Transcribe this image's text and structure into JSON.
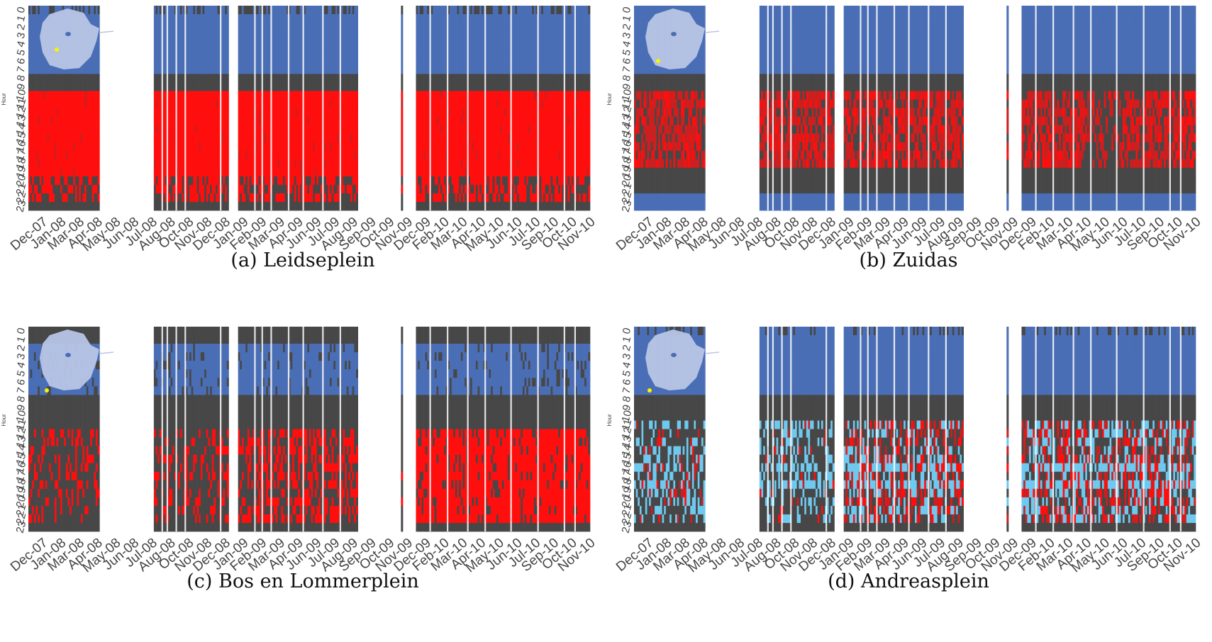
{
  "colors": {
    "grey": "#474747",
    "blue": "#4a6eb5",
    "red": "#ff0e0e",
    "darkred": "#cc1f1f",
    "cyan": "#6fc9ef",
    "map_fill": "#b8c5e6",
    "gap": "#ffffff"
  },
  "shared": {
    "ylabel": "Hour",
    "hour_ticks": [
      "0",
      "1",
      "2",
      "3",
      "4",
      "5",
      "6",
      "7",
      "8",
      "9",
      "10",
      "11",
      "12",
      "13",
      "14",
      "15",
      "16",
      "17",
      "18",
      "19",
      "20",
      "21",
      "22",
      "23"
    ],
    "month_ticks": [
      "Dec-07",
      "Jan-08",
      "Mar-08",
      "Apr-08",
      "May-08",
      "Jun-08",
      "Jul-08",
      "Aug-08",
      "Oct-08",
      "Nov-08",
      "Dec-08",
      "Jan-09",
      "Feb-09",
      "Mar-09",
      "Apr-09",
      "Jun-09",
      "Jul-09",
      "Aug-09",
      "Sep-09",
      "Oct-09",
      "Nov-09",
      "Dec-09",
      "Feb-10",
      "Mar-10",
      "Apr-10",
      "May-10",
      "Jun-10",
      "Jul-10",
      "Sep-10",
      "Oct-10",
      "Nov-10"
    ]
  },
  "panels": [
    {
      "caption": "(a) Leidseplein"
    },
    {
      "caption": "(b) Zuidas"
    },
    {
      "caption": "(c) Bos en Lommerplein"
    },
    {
      "caption": "(d) Andreasplein"
    }
  ],
  "chart_data": [
    {
      "type": "heatmap",
      "title": "(a) Leidseplein",
      "xlabel": "",
      "ylabel": "Hour",
      "x": "date (Dec-07 to Nov-10)",
      "y_range": [
        0,
        23
      ],
      "inset": "map of Amsterdam with location marker",
      "bands": [
        {
          "hours": [
            0,
            7
          ],
          "category": "blue"
        },
        {
          "hours": [
            8,
            9
          ],
          "category": "grey"
        },
        {
          "hours": [
            10,
            19
          ],
          "category": "red"
        },
        {
          "hours": [
            20,
            22
          ],
          "category": "red/grey mixed"
        },
        {
          "hours": [
            23,
            23
          ],
          "category": "grey"
        }
      ]
    },
    {
      "type": "heatmap",
      "title": "(b) Zuidas",
      "xlabel": "",
      "ylabel": "Hour",
      "x": "date (Dec-07 to Nov-10)",
      "y_range": [
        0,
        23
      ],
      "inset": "map of Amsterdam with location marker",
      "bands": [
        {
          "hours": [
            0,
            7
          ],
          "category": "blue"
        },
        {
          "hours": [
            8,
            9
          ],
          "category": "grey"
        },
        {
          "hours": [
            10,
            18
          ],
          "category": "red/grey mixed"
        },
        {
          "hours": [
            19,
            21
          ],
          "category": "grey"
        },
        {
          "hours": [
            22,
            23
          ],
          "category": "blue"
        }
      ]
    },
    {
      "type": "heatmap",
      "title": "(c) Bos en Lommerplein",
      "xlabel": "",
      "ylabel": "Hour",
      "x": "date (Dec-07 to Nov-10)",
      "y_range": [
        0,
        23
      ],
      "inset": "map of Amsterdam with location marker",
      "bands": [
        {
          "hours": [
            0,
            1
          ],
          "category": "grey"
        },
        {
          "hours": [
            2,
            7
          ],
          "category": "blue"
        },
        {
          "hours": [
            8,
            11
          ],
          "category": "grey"
        },
        {
          "hours": [
            12,
            22
          ],
          "category": "red/grey mixed"
        },
        {
          "hours": [
            23,
            23
          ],
          "category": "grey"
        }
      ]
    },
    {
      "type": "heatmap",
      "title": "(d) Andreasplein",
      "xlabel": "",
      "ylabel": "Hour",
      "x": "date (Dec-07 to Nov-10)",
      "y_range": [
        0,
        23
      ],
      "inset": "map of Amsterdam with location marker",
      "bands": [
        {
          "hours": [
            0,
            7
          ],
          "category": "blue"
        },
        {
          "hours": [
            8,
            10
          ],
          "category": "grey"
        },
        {
          "hours": [
            11,
            22
          ],
          "category": "cyan/red/grey mixed"
        },
        {
          "hours": [
            23,
            23
          ],
          "category": "grey"
        }
      ]
    }
  ]
}
